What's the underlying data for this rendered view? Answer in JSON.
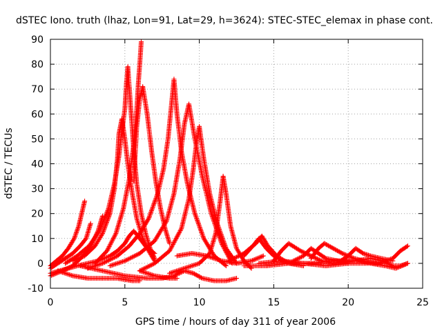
{
  "chart_data": {
    "type": "scatter",
    "title": "dSTEC Iono. truth (lhaz, Lon=91, Lat=29, h=3624): STEC-STEC_elemax in phase cont.",
    "xlabel": "GPS time / hours of day 311 of year 2006",
    "ylabel": "dSTEC  / TECUs",
    "xlim": [
      0,
      25
    ],
    "ylim": [
      -10,
      90
    ],
    "xticks": [
      0,
      5,
      10,
      15,
      20,
      25
    ],
    "yticks": [
      -10,
      0,
      10,
      20,
      30,
      40,
      50,
      60,
      70,
      80,
      90
    ],
    "grid": true,
    "marker": "+",
    "color": "#ff0000",
    "arcs": [
      {
        "x": [
          0.0,
          0.4,
          0.8,
          1.2,
          1.6,
          1.9,
          2.1,
          2.3
        ],
        "y": [
          -1,
          1,
          3,
          6,
          10,
          15,
          20,
          25
        ]
      },
      {
        "x": [
          0.0,
          0.5,
          1.0,
          1.5,
          2.0,
          2.4,
          2.7
        ],
        "y": [
          -2,
          0,
          2,
          4,
          7,
          10,
          16
        ]
      },
      {
        "x": [
          0.0,
          0.8,
          1.5,
          2.2,
          2.8,
          3.2,
          3.5
        ],
        "y": [
          -5,
          -3,
          -1,
          3,
          8,
          13,
          19
        ]
      },
      {
        "x": [
          0.0,
          0.6,
          1.2,
          1.8,
          2.5,
          3.2,
          4.0,
          4.5,
          5.0,
          5.3,
          5.6,
          6.0,
          6.5,
          7.0
        ],
        "y": [
          -4,
          -3,
          -2,
          -1,
          0,
          1,
          3,
          5,
          8,
          11,
          13,
          10,
          6,
          4
        ]
      },
      {
        "x": [
          1.0,
          1.8,
          2.6,
          3.3,
          3.9,
          4.3,
          4.6,
          4.8,
          5.0,
          5.1,
          5.2,
          5.4,
          5.6,
          5.8,
          6.1,
          6.4,
          6.7,
          7.0
        ],
        "y": [
          0,
          3,
          7,
          13,
          22,
          32,
          43,
          53,
          62,
          72,
          79,
          62,
          45,
          32,
          20,
          12,
          6,
          2
        ]
      },
      {
        "x": [
          1.5,
          2.3,
          3.0,
          3.5,
          4.0,
          4.3,
          4.5,
          4.6,
          4.8,
          5.0,
          5.2,
          5.5,
          5.8,
          6.2,
          6.6,
          7.0
        ],
        "y": [
          1,
          3,
          7,
          12,
          20,
          30,
          42,
          52,
          58,
          50,
          40,
          28,
          18,
          10,
          5,
          1
        ]
      },
      {
        "x": [
          3.0,
          3.8,
          4.4,
          4.9,
          5.3,
          5.6,
          5.8,
          5.9,
          6.0,
          6.1
        ],
        "y": [
          0,
          5,
          12,
          22,
          34,
          48,
          62,
          72,
          80,
          89
        ]
      },
      {
        "x": [
          5.6,
          5.8,
          6.0,
          6.2,
          6.5,
          6.8,
          7.1,
          7.4,
          7.7,
          8.0
        ],
        "y": [
          33,
          55,
          66,
          71,
          60,
          45,
          32,
          22,
          14,
          8
        ]
      },
      {
        "x": [
          2.5,
          3.5,
          4.5,
          5.3,
          6.0,
          6.6,
          7.2,
          7.6,
          7.9,
          8.1,
          8.3,
          8.5,
          8.8,
          9.2,
          9.7,
          10.3,
          11.0,
          11.8
        ],
        "y": [
          -2,
          0,
          3,
          7,
          12,
          18,
          28,
          38,
          50,
          62,
          74,
          60,
          45,
          32,
          20,
          10,
          3,
          -1
        ]
      },
      {
        "x": [
          4.0,
          5.0,
          6.0,
          7.0,
          7.8,
          8.3,
          8.7,
          9.0,
          9.3,
          9.7,
          10.2,
          10.8,
          11.5,
          12.2
        ],
        "y": [
          -1,
          1,
          4,
          9,
          17,
          28,
          42,
          56,
          64,
          50,
          35,
          20,
          8,
          0
        ]
      },
      {
        "x": [
          6.0,
          7.0,
          8.0,
          8.8,
          9.3,
          9.6,
          9.8,
          10.0,
          10.3,
          10.7,
          11.2,
          11.8,
          12.5
        ],
        "y": [
          -3,
          0,
          5,
          14,
          26,
          38,
          48,
          55,
          42,
          28,
          16,
          6,
          0
        ]
      },
      {
        "x": [
          8.0,
          9.0,
          10.0,
          10.7,
          11.1,
          11.4,
          11.6,
          11.8,
          12.1,
          12.5,
          13.0,
          13.5
        ],
        "y": [
          -4,
          -2,
          0,
          4,
          12,
          25,
          35,
          28,
          15,
          6,
          1,
          -2
        ]
      },
      {
        "x": [
          2.0,
          3.5,
          5.0,
          6.5,
          7.5,
          8.3,
          9.0,
          9.6,
          10.2,
          11.0,
          11.8,
          12.5
        ],
        "y": [
          -1,
          -3,
          -5,
          -6,
          -6,
          -5,
          -3,
          -4,
          -6,
          -7,
          -7,
          -6
        ]
      },
      {
        "x": [
          0.5,
          1.5,
          2.5,
          3.5,
          4.5,
          5.5,
          6.0
        ],
        "y": [
          -3,
          -5,
          -6,
          -6,
          -6,
          -7,
          -7
        ]
      },
      {
        "x": [
          6.0,
          7.0,
          8.0,
          8.5
        ],
        "y": [
          -3,
          -5,
          -6,
          -6
        ]
      },
      {
        "x": [
          8.5,
          9.5,
          10.5,
          11.5,
          12.5,
          13.5,
          14.3
        ],
        "y": [
          3,
          4,
          3,
          1,
          0,
          1,
          3
        ]
      },
      {
        "x": [
          12.0,
          13.0,
          13.8,
          14.2,
          14.6,
          15.2,
          16.0,
          17.0
        ],
        "y": [
          1,
          4,
          8,
          11,
          7,
          3,
          0,
          -1
        ]
      },
      {
        "x": [
          13.0,
          13.6,
          14.0,
          14.5,
          15.0,
          15.6,
          16.3
        ],
        "y": [
          3,
          7,
          10,
          6,
          3,
          1,
          0
        ]
      },
      {
        "x": [
          15.0,
          15.5,
          16.0,
          16.8,
          17.5,
          18.2,
          19.0
        ],
        "y": [
          1,
          5,
          8,
          5,
          3,
          1,
          0
        ]
      },
      {
        "x": [
          16.0,
          17.0,
          17.5,
          18.0,
          18.5,
          19.3,
          20.0
        ],
        "y": [
          0,
          3,
          6,
          4,
          2,
          1,
          0
        ]
      },
      {
        "x": [
          17.5,
          18.0,
          18.4,
          19.0,
          19.6,
          20.4,
          21.0
        ],
        "y": [
          2,
          6,
          8,
          6,
          4,
          2,
          1
        ]
      },
      {
        "x": [
          19.5,
          20.0,
          20.5,
          21.0,
          21.5,
          22.2,
          23.0
        ],
        "y": [
          1,
          3,
          6,
          4,
          3,
          2,
          1
        ]
      },
      {
        "x": [
          13.0,
          14.5,
          16.0,
          17.5,
          19.0,
          20.5,
          22.0,
          23.0,
          23.5,
          24.0
        ],
        "y": [
          -1,
          -1,
          0,
          0,
          1,
          1,
          0,
          2,
          5,
          7
        ]
      },
      {
        "x": [
          14.0,
          15.5,
          17.0,
          18.5,
          20.0,
          21.5,
          22.5,
          23.2,
          24.0
        ],
        "y": [
          0,
          1,
          0,
          -1,
          0,
          0,
          -1,
          -2,
          0
        ]
      },
      {
        "x": [
          19.0,
          20.5,
          21.5,
          22.3,
          23.0,
          23.5,
          24.0
        ],
        "y": [
          0,
          1,
          2,
          1,
          -1,
          -1,
          0
        ]
      }
    ]
  }
}
